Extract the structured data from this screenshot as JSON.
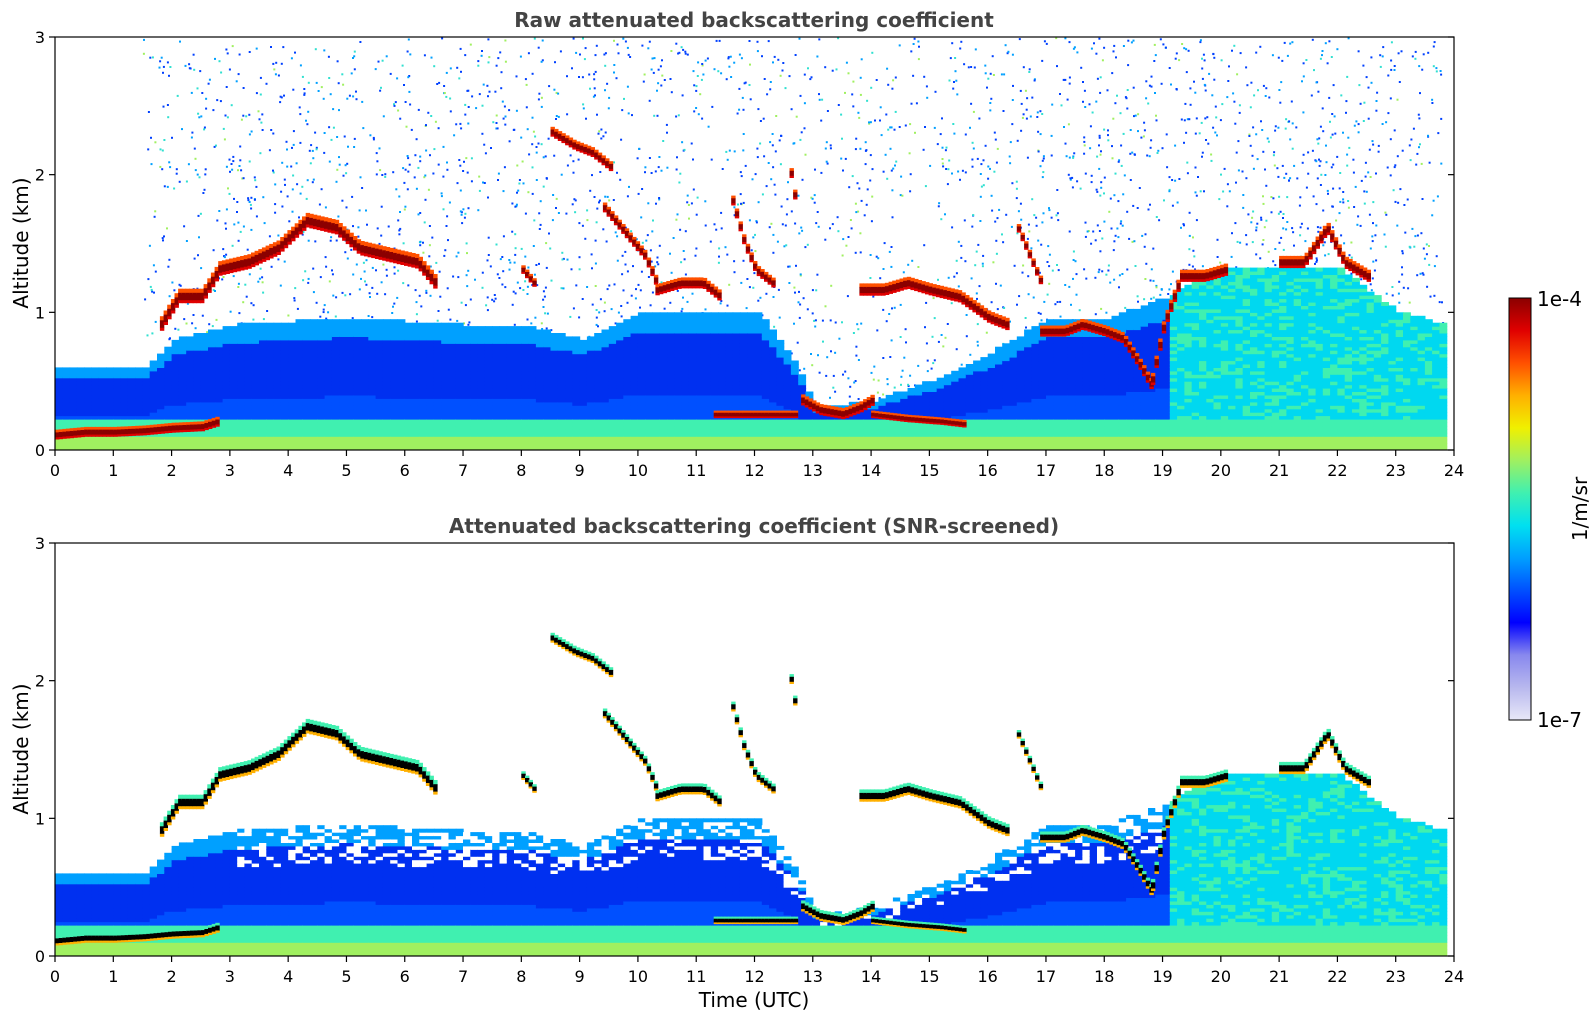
{
  "chart_data": [
    {
      "type": "heatmap",
      "title": "Raw attenuated backscattering coefficient",
      "xlabel": "",
      "ylabel": "Altitude (km)",
      "xlim": [
        0,
        24
      ],
      "ylim": [
        0,
        3
      ],
      "xticks": [
        "0",
        "1",
        "2",
        "3",
        "4",
        "5",
        "6",
        "7",
        "8",
        "9",
        "10",
        "11",
        "12",
        "13",
        "14",
        "15",
        "16",
        "17",
        "18",
        "19",
        "20",
        "21",
        "22",
        "23",
        "24"
      ],
      "yticks": [
        "0",
        "1",
        "2",
        "3"
      ],
      "colorscale": "jet",
      "background_noise": "scattered blue/cyan/green speckle throughout the upper profile",
      "surface_layer": {
        "top_km": 0.2,
        "color": "green-yellow"
      },
      "aerosol_layer_top_km": [
        [
          1.5,
          0.6
        ],
        [
          2,
          0.8
        ],
        [
          3,
          0.9
        ],
        [
          5,
          0.95
        ],
        [
          7,
          0.9
        ],
        [
          8,
          0.9
        ],
        [
          9,
          0.8
        ],
        [
          10,
          1.0
        ],
        [
          12,
          1.0
        ],
        [
          12.7,
          0.6
        ],
        [
          13,
          0.3
        ],
        [
          14,
          0.35
        ],
        [
          15,
          0.5
        ],
        [
          16,
          0.7
        ],
        [
          17,
          0.95
        ],
        [
          18,
          0.95
        ],
        [
          19,
          1.1
        ],
        [
          20,
          1.3
        ],
        [
          21,
          1.3
        ],
        [
          22,
          1.3
        ],
        [
          23,
          1.0
        ],
        [
          23.8,
          0.9
        ]
      ],
      "cloud_layers": [
        {
          "points": [
            [
              0,
              0.1
            ],
            [
              0.5,
              0.12
            ],
            [
              1,
              0.12
            ],
            [
              1.5,
              0.13
            ],
            [
              2,
              0.15
            ],
            [
              2.5,
              0.16
            ],
            [
              2.8,
              0.2
            ]
          ],
          "thickness_km": 0.08
        },
        {
          "points": [
            [
              1.8,
              0.9
            ],
            [
              2.1,
              1.1
            ],
            [
              2.5,
              1.1
            ],
            [
              2.8,
              1.3
            ],
            [
              3.3,
              1.35
            ],
            [
              3.8,
              1.45
            ],
            [
              4.3,
              1.65
            ],
            [
              4.8,
              1.6
            ],
            [
              5.2,
              1.45
            ],
            [
              5.7,
              1.4
            ],
            [
              6.2,
              1.35
            ],
            [
              6.5,
              1.2
            ]
          ],
          "thickness_km": 0.12
        },
        {
          "points": [
            [
              8,
              1.3
            ],
            [
              8.2,
              1.2
            ]
          ],
          "thickness_km": 0.07
        },
        {
          "points": [
            [
              8.5,
              2.3
            ],
            [
              8.9,
              2.2
            ],
            [
              9.2,
              2.15
            ],
            [
              9.5,
              2.05
            ]
          ],
          "thickness_km": 0.08
        },
        {
          "points": [
            [
              9.4,
              1.75
            ],
            [
              9.8,
              1.55
            ],
            [
              10.1,
              1.4
            ],
            [
              10.3,
              1.2
            ]
          ],
          "thickness_km": 0.08
        },
        {
          "points": [
            [
              10.3,
              1.15
            ],
            [
              10.7,
              1.2
            ],
            [
              11.1,
              1.2
            ],
            [
              11.4,
              1.1
            ]
          ],
          "thickness_km": 0.09
        },
        {
          "points": [
            [
              11.6,
              1.8
            ],
            [
              11.8,
              1.5
            ],
            [
              12.0,
              1.3
            ],
            [
              12.3,
              1.2
            ]
          ],
          "thickness_km": 0.08
        },
        {
          "points": [
            [
              12.6,
              2.0
            ],
            [
              12.7,
              1.75
            ]
          ],
          "thickness_km": 0.08
        },
        {
          "points": [
            [
              12.8,
              0.35
            ],
            [
              13.1,
              0.28
            ],
            [
              13.5,
              0.25
            ],
            [
              13.8,
              0.3
            ],
            [
              14.0,
              0.35
            ]
          ],
          "thickness_km": 0.09
        },
        {
          "points": [
            [
              13.8,
              1.15
            ],
            [
              14.2,
              1.15
            ],
            [
              14.6,
              1.2
            ],
            [
              15.0,
              1.15
            ],
            [
              15.5,
              1.1
            ],
            [
              16.0,
              0.95
            ],
            [
              16.3,
              0.9
            ]
          ],
          "thickness_km": 0.1
        },
        {
          "points": [
            [
              14,
              0.25
            ],
            [
              14.6,
              0.22
            ],
            [
              15.2,
              0.2
            ],
            [
              15.6,
              0.18
            ]
          ],
          "thickness_km": 0.06
        },
        {
          "points": [
            [
              11.3,
              0.25
            ],
            [
              12.0,
              0.25
            ],
            [
              12.7,
              0.25
            ]
          ],
          "thickness_km": 0.06
        },
        {
          "points": [
            [
              16.5,
              1.6
            ],
            [
              16.7,
              1.4
            ],
            [
              16.9,
              1.2
            ]
          ],
          "thickness_km": 0.07
        },
        {
          "points": [
            [
              16.9,
              0.85
            ],
            [
              17.3,
              0.85
            ],
            [
              17.6,
              0.9
            ],
            [
              18.0,
              0.85
            ],
            [
              18.3,
              0.8
            ],
            [
              18.6,
              0.6
            ],
            [
              18.8,
              0.45
            ]
          ],
          "thickness_km": 0.09
        },
        {
          "points": [
            [
              18.8,
              0.5
            ],
            [
              19.0,
              0.9
            ],
            [
              19.3,
              1.25
            ],
            [
              19.7,
              1.25
            ],
            [
              20.1,
              1.3
            ]
          ],
          "thickness_km": 0.1
        },
        {
          "points": [
            [
              21.0,
              1.35
            ],
            [
              21.4,
              1.35
            ],
            [
              21.8,
              1.6
            ],
            [
              22.1,
              1.35
            ],
            [
              22.5,
              1.25
            ]
          ],
          "thickness_km": 0.1
        }
      ]
    },
    {
      "type": "heatmap",
      "title": "Attenuated backscattering coefficient (SNR-screened)",
      "xlabel": "Time (UTC)",
      "ylabel": "Altitude (km)",
      "xlim": [
        0,
        24
      ],
      "ylim": [
        0,
        3
      ],
      "xticks": [
        "0",
        "1",
        "2",
        "3",
        "4",
        "5",
        "6",
        "7",
        "8",
        "9",
        "10",
        "11",
        "12",
        "13",
        "14",
        "15",
        "16",
        "17",
        "18",
        "19",
        "20",
        "21",
        "22",
        "23",
        "24"
      ],
      "yticks": [
        "0",
        "1",
        "2",
        "3"
      ],
      "colorscale": "jet",
      "screening": "pixels below SNR threshold shown as white",
      "cloud_core_color": "#000000"
    }
  ],
  "colorbar": {
    "label": "1/m/sr",
    "max_label": "1e-4",
    "min_label": "1e-7",
    "scale": "log",
    "colors": [
      "#e8e8f8",
      "#b8b8ee",
      "#8888ee",
      "#0000ff",
      "#0050ff",
      "#00a0ff",
      "#00e0f0",
      "#40f0b0",
      "#a0f060",
      "#f0f000",
      "#ffb000",
      "#ff5000",
      "#e00000",
      "#8b0000"
    ]
  }
}
